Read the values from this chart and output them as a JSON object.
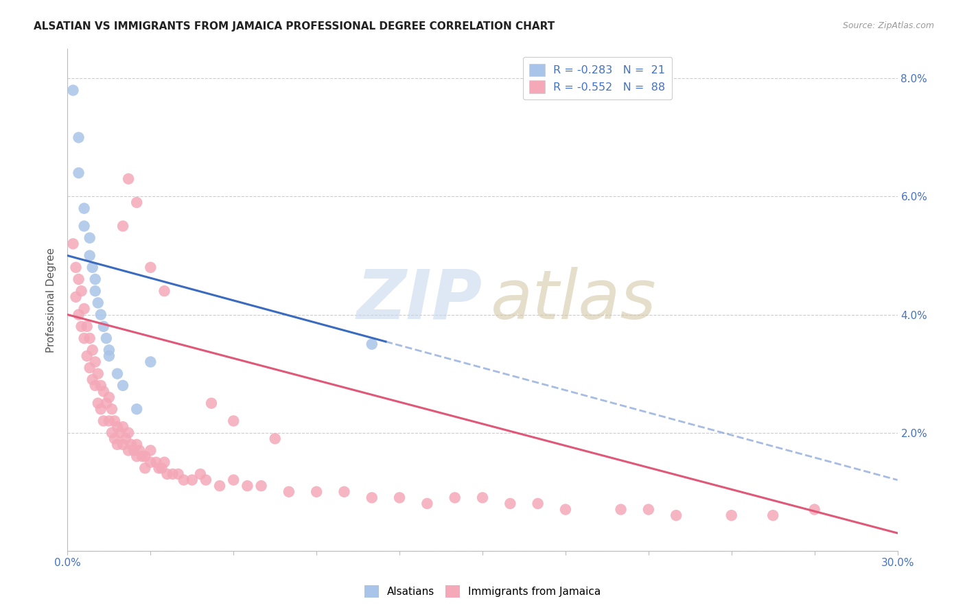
{
  "title": "ALSATIAN VS IMMIGRANTS FROM JAMAICA PROFESSIONAL DEGREE CORRELATION CHART",
  "source": "Source: ZipAtlas.com",
  "ylabel": "Professional Degree",
  "xlim": [
    0.0,
    0.3
  ],
  "ylim": [
    0.0,
    0.085
  ],
  "blue_color": "#a8c4e8",
  "pink_color": "#f4a8b8",
  "blue_line_color": "#3a6bbf",
  "pink_line_color": "#e05878",
  "watermark_zip_color": "#c8d8ee",
  "watermark_atlas_color": "#d4c8a8",
  "legend_texts": [
    "R = -0.283   N =  21",
    "R = -0.552   N =  88"
  ],
  "blue_scatter_x": [
    0.002,
    0.004,
    0.004,
    0.006,
    0.006,
    0.008,
    0.008,
    0.009,
    0.01,
    0.01,
    0.011,
    0.012,
    0.013,
    0.014,
    0.015,
    0.015,
    0.018,
    0.02,
    0.025,
    0.03,
    0.11
  ],
  "blue_scatter_y": [
    0.078,
    0.07,
    0.064,
    0.058,
    0.055,
    0.053,
    0.05,
    0.048,
    0.046,
    0.044,
    0.042,
    0.04,
    0.038,
    0.036,
    0.034,
    0.033,
    0.03,
    0.028,
    0.024,
    0.032,
    0.035
  ],
  "blue_line_x0": 0.0,
  "blue_line_y0": 0.05,
  "blue_line_x1": 0.3,
  "blue_line_y1": 0.012,
  "blue_line_solid_end": 0.115,
  "pink_line_x0": 0.0,
  "pink_line_y0": 0.04,
  "pink_line_x1": 0.3,
  "pink_line_y1": 0.003,
  "pink_scatter_x": [
    0.002,
    0.003,
    0.003,
    0.004,
    0.004,
    0.005,
    0.005,
    0.006,
    0.006,
    0.007,
    0.007,
    0.008,
    0.008,
    0.009,
    0.009,
    0.01,
    0.01,
    0.011,
    0.011,
    0.012,
    0.012,
    0.013,
    0.013,
    0.014,
    0.015,
    0.015,
    0.016,
    0.016,
    0.017,
    0.017,
    0.018,
    0.018,
    0.019,
    0.02,
    0.02,
    0.021,
    0.022,
    0.022,
    0.023,
    0.024,
    0.025,
    0.025,
    0.026,
    0.027,
    0.028,
    0.028,
    0.03,
    0.03,
    0.032,
    0.033,
    0.034,
    0.035,
    0.036,
    0.038,
    0.04,
    0.042,
    0.045,
    0.048,
    0.05,
    0.055,
    0.06,
    0.065,
    0.07,
    0.08,
    0.09,
    0.1,
    0.11,
    0.12,
    0.13,
    0.14,
    0.15,
    0.16,
    0.17,
    0.18,
    0.2,
    0.21,
    0.22,
    0.24,
    0.255,
    0.27,
    0.022,
    0.025,
    0.03,
    0.035,
    0.02,
    0.052,
    0.06,
    0.075
  ],
  "pink_scatter_y": [
    0.052,
    0.048,
    0.043,
    0.046,
    0.04,
    0.044,
    0.038,
    0.041,
    0.036,
    0.038,
    0.033,
    0.036,
    0.031,
    0.034,
    0.029,
    0.032,
    0.028,
    0.03,
    0.025,
    0.028,
    0.024,
    0.027,
    0.022,
    0.025,
    0.026,
    0.022,
    0.024,
    0.02,
    0.022,
    0.019,
    0.021,
    0.018,
    0.02,
    0.021,
    0.018,
    0.019,
    0.02,
    0.017,
    0.018,
    0.017,
    0.018,
    0.016,
    0.017,
    0.016,
    0.016,
    0.014,
    0.017,
    0.015,
    0.015,
    0.014,
    0.014,
    0.015,
    0.013,
    0.013,
    0.013,
    0.012,
    0.012,
    0.013,
    0.012,
    0.011,
    0.012,
    0.011,
    0.011,
    0.01,
    0.01,
    0.01,
    0.009,
    0.009,
    0.008,
    0.009,
    0.009,
    0.008,
    0.008,
    0.007,
    0.007,
    0.007,
    0.006,
    0.006,
    0.006,
    0.007,
    0.063,
    0.059,
    0.048,
    0.044,
    0.055,
    0.025,
    0.022,
    0.019
  ]
}
